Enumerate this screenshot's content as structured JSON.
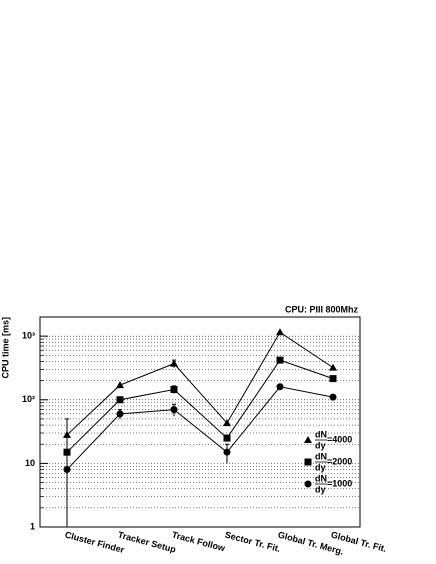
{
  "chart_data": {
    "type": "line",
    "title": "CPU: PIII 800Mhz",
    "y_label": "CPU time [ms]",
    "categories": [
      "Cluster Finder",
      "Tracker Setup",
      "Track Follow",
      "Sector Tr. Fit.",
      "Global Tr. Merg.",
      "Global Tr. Fit."
    ],
    "log_y": true,
    "grid": true,
    "color": "#000000",
    "ylim": [
      1,
      2000
    ],
    "yticks": [
      1,
      10,
      {
        "value": 100,
        "label": "10²"
      },
      {
        "value": 1000,
        "label": "10³"
      }
    ],
    "minor_yticks": [
      2,
      3,
      4,
      5,
      6,
      7,
      8,
      9,
      20,
      30,
      40,
      50,
      60,
      70,
      80,
      90,
      200,
      300,
      400,
      500,
      600,
      700,
      800,
      900
    ],
    "legend_fraction": {
      "numerator": "dN",
      "denominator": "dy"
    },
    "series": [
      {
        "name": "=4000",
        "marker": "triangle",
        "values": [
          28,
          170,
          370,
          43,
          1150,
          320
        ],
        "errors": [
          0,
          0,
          50,
          0,
          0,
          0
        ]
      },
      {
        "name": "=2000",
        "marker": "square",
        "values": [
          15,
          100,
          145,
          25,
          420,
          215
        ],
        "errors": [
          0,
          0,
          20,
          0,
          0,
          0
        ]
      },
      {
        "name": "=1000",
        "marker": "circle",
        "values": [
          8,
          60,
          70,
          15,
          160,
          110
        ],
        "errors": [
          42,
          10,
          15,
          5,
          0,
          0
        ]
      }
    ]
  }
}
